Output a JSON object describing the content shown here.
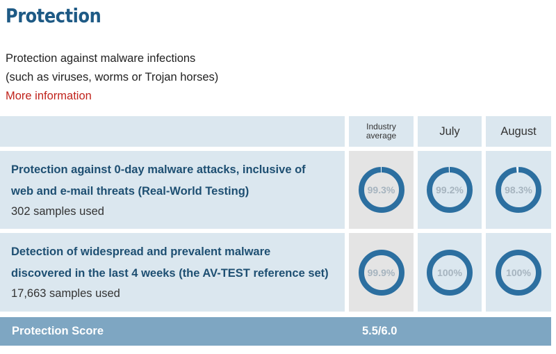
{
  "section": {
    "title": "Protection",
    "description_line1": "Protection against malware infections",
    "description_line2": "(such as viruses, worms or Trojan horses)",
    "more_info_label": "More information"
  },
  "table": {
    "columns": {
      "industry_average_line1": "Industry",
      "industry_average_line2": "average",
      "month1": "July",
      "month2": "August"
    },
    "rows": [
      {
        "title_line1": "Protection against 0-day malware attacks, inclusive of",
        "title_line2": "web and e-mail threats (Real-World Testing)",
        "samples": "302 samples used",
        "industry_average": "99.3%",
        "month1_value": "99.2%",
        "month2_value": "98.3%",
        "industry_average_fraction": 0.993,
        "month1_fraction": 0.992,
        "month2_fraction": 0.983
      },
      {
        "title_line1": "Detection of widespread and prevalent malware",
        "title_line2": "discovered in the last 4 weeks (the AV-TEST reference set)",
        "samples": "17,663 samples used",
        "industry_average": "99.9%",
        "month1_value": "100%",
        "month2_value": "100%",
        "industry_average_fraction": 0.999,
        "month1_fraction": 1.0,
        "month2_fraction": 1.0
      }
    ],
    "score": {
      "label": "Protection Score",
      "value": "5.5/6.0"
    }
  },
  "colors": {
    "title": "#1e5a85",
    "link": "#c0231c",
    "gauge_fill": "#2c6fa0",
    "gauge_track": "#ffffff",
    "row_bg": "#dbe7ef",
    "industry_bg": "#e4e4e4",
    "score_bar": "#7ea6c2"
  }
}
